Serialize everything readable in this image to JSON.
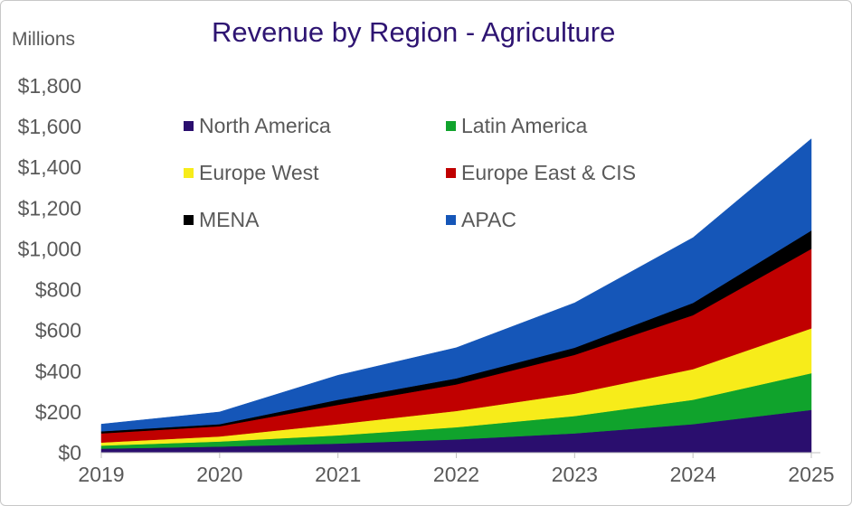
{
  "chart_data": {
    "type": "area",
    "stacked": true,
    "title": "Revenue by Region - Agriculture",
    "units_label": "Millions",
    "x": [
      "2019",
      "2020",
      "2021",
      "2022",
      "2023",
      "2024",
      "2025"
    ],
    "ylim": [
      0,
      1800
    ],
    "yticks": [
      0,
      200,
      400,
      600,
      800,
      1000,
      1200,
      1400,
      1600,
      1800
    ],
    "ytick_labels": [
      "$0",
      "$200",
      "$400",
      "$600",
      "$800",
      "$1,000",
      "$1,200",
      "$1,400",
      "$1,600",
      "$1,800"
    ],
    "legend_position": "top-center",
    "grid": false,
    "series": [
      {
        "name": "North America",
        "color": "#2a0e6e",
        "values": [
          20,
          30,
          45,
          65,
          95,
          140,
          210
        ]
      },
      {
        "name": "Latin America",
        "color": "#10a32c",
        "values": [
          15,
          25,
          40,
          60,
          85,
          120,
          180
        ]
      },
      {
        "name": "Europe West",
        "color": "#f7ec1a",
        "values": [
          15,
          25,
          55,
          80,
          110,
          150,
          220
        ]
      },
      {
        "name": "Europe East & CIS",
        "color": "#c00000",
        "values": [
          45,
          50,
          95,
          130,
          190,
          265,
          390
        ]
      },
      {
        "name": "MENA",
        "color": "#000000",
        "values": [
          10,
          10,
          25,
          30,
          35,
          60,
          90
        ]
      },
      {
        "name": "APAC",
        "color": "#1556b8",
        "values": [
          35,
          60,
          120,
          150,
          220,
          320,
          450
        ]
      }
    ]
  }
}
